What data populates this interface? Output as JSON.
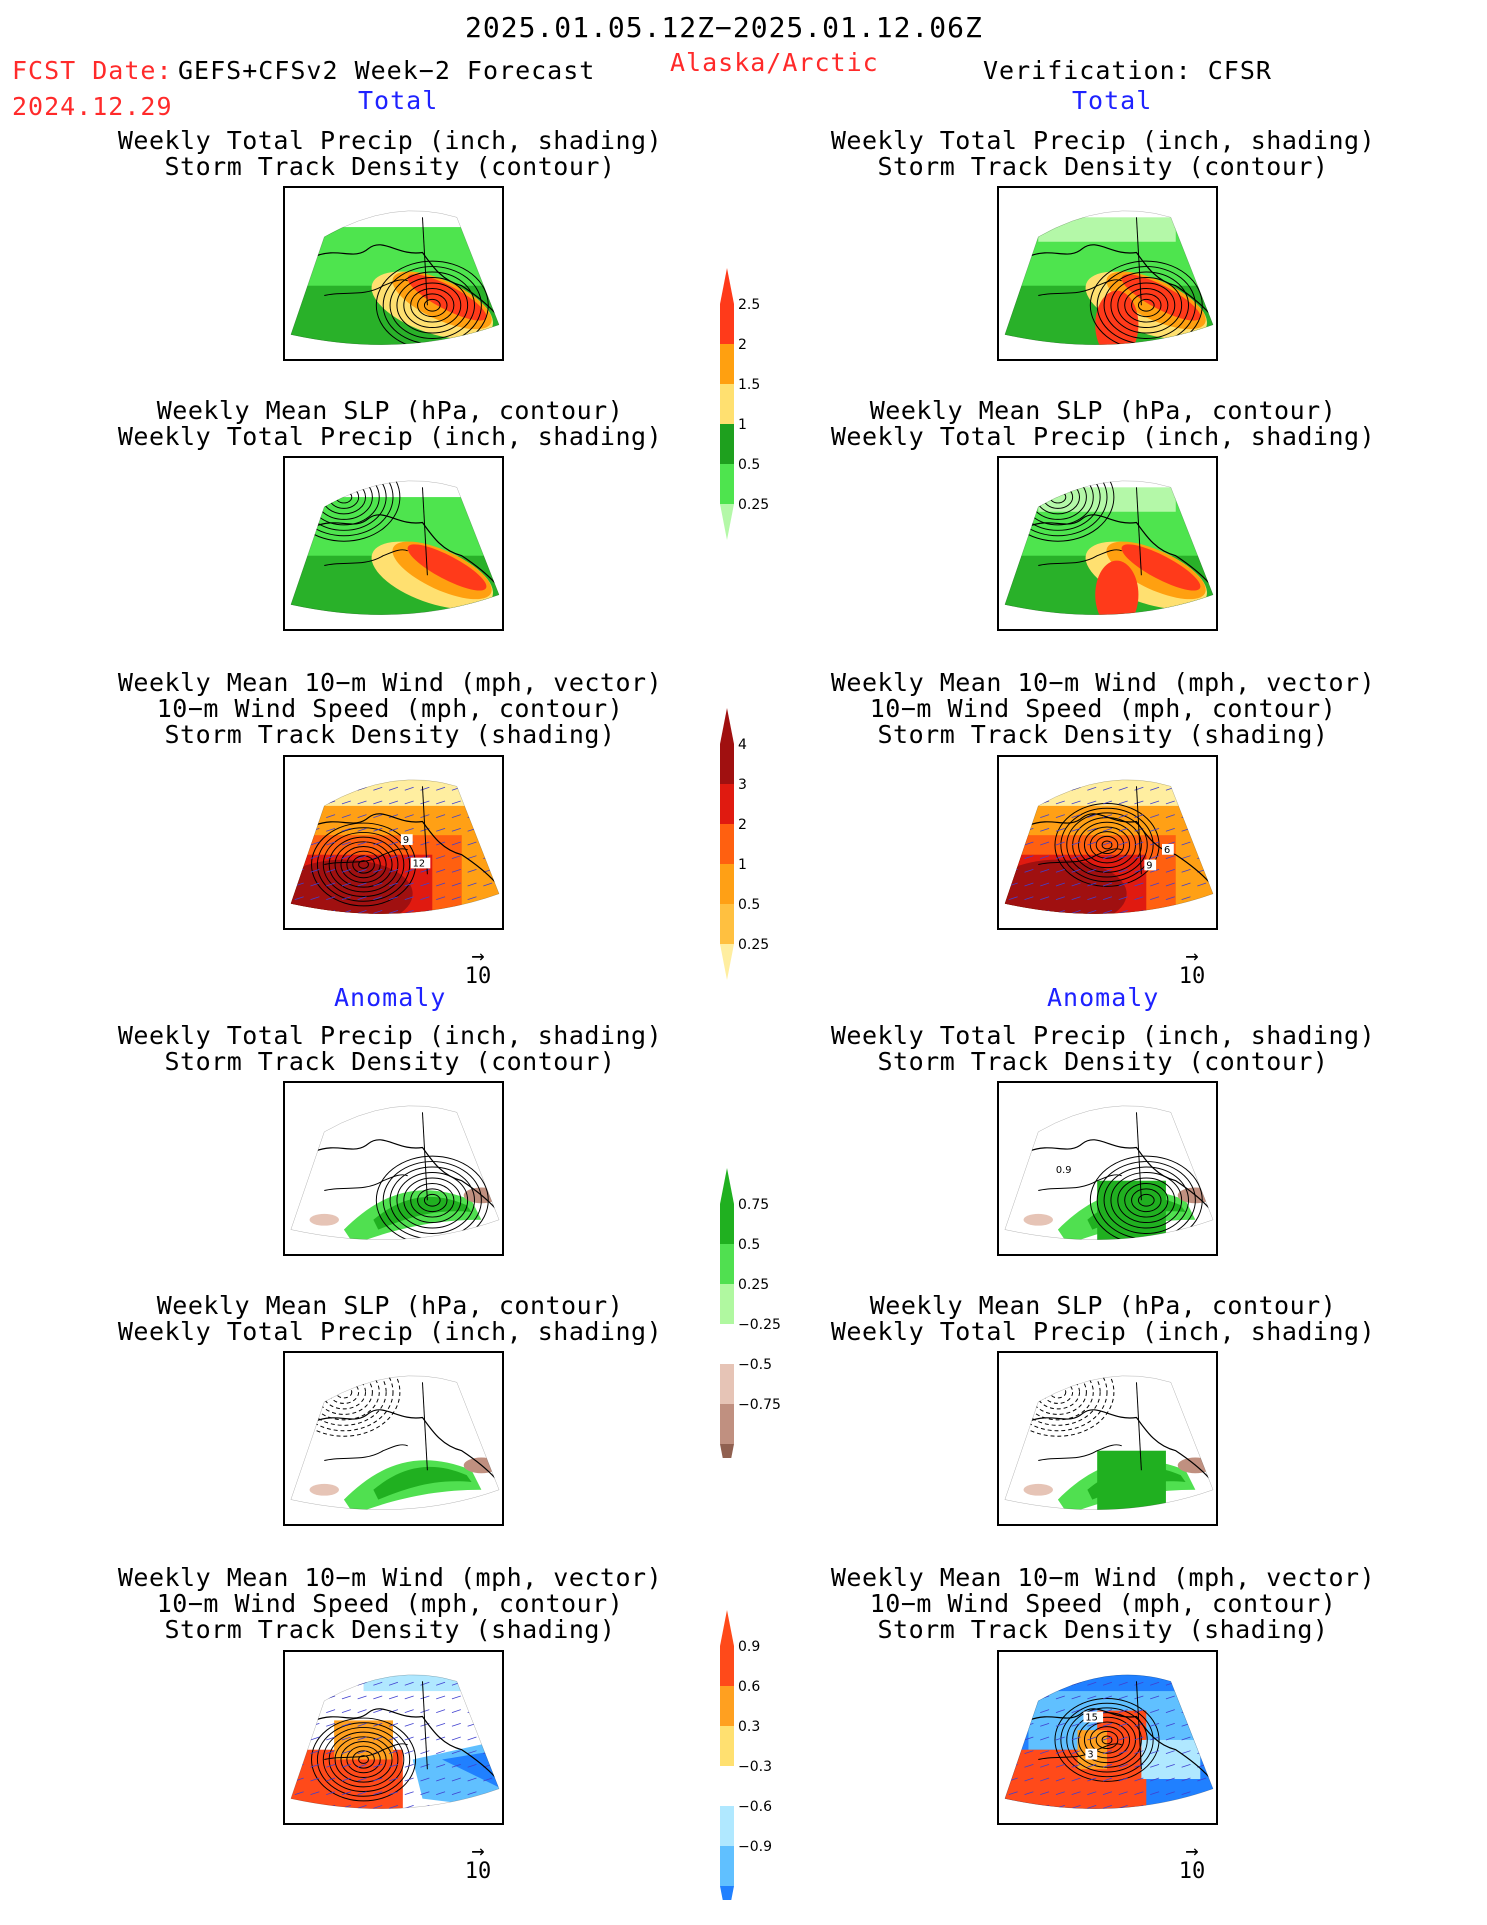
{
  "header": {
    "date_range": "2025.01.05.12Z−2025.01.12.06Z",
    "fcst_label": "FCST Date:",
    "fcst_model": "GEFS+CFSv2 Week−2 Forecast",
    "fcst_date": "2024.12.29",
    "region": "Alaska/Arctic",
    "verification": "Verification: CFSR"
  },
  "sections": {
    "total": "Total",
    "anomaly": "Anomaly"
  },
  "titles": {
    "precip_track": [
      "Weekly Total Precip (inch, shading)",
      "Storm Track Density (contour)"
    ],
    "slp_precip": [
      "Weekly Mean SLP (hPa, contour)",
      "Weekly Total Precip (inch, shading)"
    ],
    "wind_track": [
      "Weekly Mean 10−m Wind (mph, vector)",
      "10−m Wind Speed (mph, contour)",
      "Storm Track Density (shading)"
    ]
  },
  "vector_ref": "10",
  "colorbars": [
    {
      "labels": [
        "2.5",
        "2",
        "1.5",
        "1",
        "0.5",
        "0.25"
      ],
      "colors": [
        "#ff3a1a",
        "#ffa010",
        "#ffe070",
        "#1ea01e",
        "#4ee44e",
        "#b4f8a8"
      ]
    },
    {
      "labels": [
        "4",
        "3",
        "2",
        "1",
        "0.5",
        "0.25"
      ],
      "colors": [
        "#a01010",
        "#e01a10",
        "#ff6010",
        "#ffa015",
        "#ffc040",
        "#ffeea0"
      ]
    },
    {
      "labels": [
        "0.75",
        "0.5",
        "0.25",
        "−0.25",
        "−0.5",
        "−0.75"
      ],
      "colors": [
        "#20b020",
        "#50e050",
        "#b0f8a0",
        "#ffffff",
        "#e6c4b6",
        "#c09080",
        "#906050"
      ]
    },
    {
      "labels": [
        "0.9",
        "0.6",
        "0.3",
        "−0.3",
        "−0.6",
        "−0.9"
      ],
      "colors": [
        "#ff4a1a",
        "#ffa020",
        "#ffe070",
        "#ffffff",
        "#b0e8ff",
        "#60c0ff",
        "#2080ff"
      ]
    }
  ],
  "panel_labels": {
    "fcst_wind_total": [
      "9",
      "12"
    ],
    "obs_wind_total": [
      "6",
      "9"
    ],
    "obs_precip_anom": [
      "0.9"
    ],
    "obs_wind_anom": [
      "15",
      "3"
    ]
  },
  "colors": {
    "accent_red": "#ff2a2a",
    "accent_blue": "#1e22ff"
  }
}
